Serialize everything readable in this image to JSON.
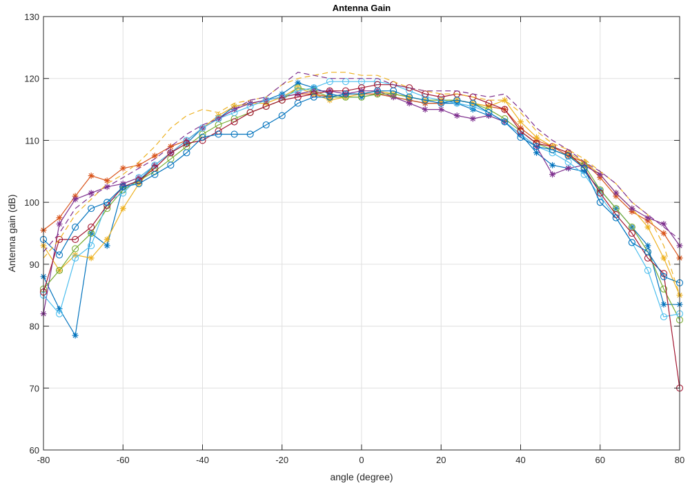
{
  "chart_data": {
    "type": "line",
    "title": "Antenna Gain",
    "xlabel": "angle (degree)",
    "ylabel": "Antenna gain (dB)",
    "xlim": [
      -80,
      80
    ],
    "ylim": [
      60,
      130
    ],
    "x_ticks": [
      -80,
      -60,
      -40,
      -20,
      0,
      20,
      40,
      60,
      80
    ],
    "y_ticks": [
      60,
      70,
      80,
      90,
      100,
      110,
      120,
      130
    ],
    "grid": true,
    "legend": "none",
    "x": [
      -80,
      -76,
      -72,
      -68,
      -64,
      -60,
      -56,
      -52,
      -48,
      -44,
      -40,
      -36,
      -32,
      -28,
      -24,
      -20,
      -16,
      -12,
      -8,
      -4,
      0,
      4,
      8,
      12,
      16,
      20,
      24,
      28,
      32,
      36,
      40,
      44,
      48,
      52,
      56,
      60,
      64,
      68,
      72,
      76,
      80
    ],
    "series": [
      {
        "name": "series-1",
        "color": "#0072BD",
        "marker": "*",
        "dash": false,
        "values": [
          88,
          82.8,
          78.5,
          95,
          93,
          102.5,
          103.5,
          106,
          108,
          109.5,
          112,
          113.5,
          115.5,
          116,
          116.5,
          117.5,
          119.3,
          118.5,
          117.5,
          117,
          117,
          117.5,
          117,
          116.5,
          116,
          116,
          116,
          115,
          114,
          113,
          111,
          108,
          106,
          105.5,
          105,
          102,
          99,
          96,
          93,
          83.5,
          83.5
        ]
      },
      {
        "name": "series-2",
        "color": "#D95319",
        "marker": "*",
        "dash": false,
        "values": [
          95.5,
          97.5,
          101,
          104.3,
          103.5,
          105.5,
          106,
          107.5,
          109,
          110,
          112,
          113.5,
          115,
          116,
          116.5,
          117,
          117.5,
          117.5,
          117,
          117.5,
          117.5,
          117.5,
          117,
          116.5,
          116,
          116,
          116.5,
          116,
          115.5,
          115,
          112,
          110,
          109,
          107.5,
          106.5,
          104,
          101,
          98.5,
          97,
          95,
          91
        ]
      },
      {
        "name": "series-3",
        "color": "#EDB120",
        "marker": "*",
        "dash": false,
        "values": [
          93,
          89,
          91.5,
          91,
          94,
          99,
          103,
          106,
          108,
          110,
          112,
          114,
          115.5,
          116,
          116,
          117,
          118.5,
          117.5,
          116.5,
          117,
          117.5,
          118,
          117.5,
          117,
          116.5,
          116.5,
          116.5,
          116,
          115.5,
          116.5,
          113,
          110.5,
          109,
          108,
          106.5,
          104.5,
          101.5,
          99,
          96,
          91,
          85
        ]
      },
      {
        "name": "series-4",
        "color": "#7E2F8E",
        "marker": "*",
        "dash": false,
        "values": [
          82,
          96.5,
          100.5,
          101.5,
          102.5,
          103,
          104,
          106,
          108,
          110,
          112,
          113.5,
          115,
          116,
          116.5,
          117,
          117.5,
          118,
          118,
          117.5,
          118,
          118,
          117,
          116,
          115,
          115,
          114,
          113.5,
          114,
          113,
          111,
          109,
          104.5,
          105.5,
          106,
          104.5,
          101.5,
          99,
          97.5,
          96.5,
          93
        ]
      },
      {
        "name": "series-5",
        "color": "#77AC30",
        "marker": "o",
        "dash": false,
        "values": [
          86,
          89,
          92.5,
          95,
          99,
          102,
          103.5,
          105,
          107,
          109,
          111,
          112.5,
          113.5,
          114.5,
          115.5,
          116.5,
          118.5,
          118,
          117,
          117,
          117,
          117.5,
          117.5,
          117,
          116.5,
          116.5,
          116.5,
          116,
          115,
          113.5,
          111.5,
          109.5,
          108.5,
          107.5,
          106,
          102,
          99,
          96,
          92,
          86,
          81
        ]
      },
      {
        "name": "series-6",
        "color": "#4DBEEE",
        "marker": "o",
        "dash": false,
        "values": [
          85,
          82,
          91,
          93,
          100,
          101.5,
          104,
          106,
          108,
          110,
          112,
          113.5,
          114.5,
          115.5,
          116.5,
          117,
          118,
          118.5,
          119.5,
          119.5,
          119.5,
          119.5,
          119,
          118,
          117,
          116.5,
          116,
          115.5,
          114.5,
          113,
          111,
          109,
          108,
          106.5,
          104.5,
          101,
          97.5,
          93.5,
          89,
          81.5,
          82
        ]
      },
      {
        "name": "series-7",
        "color": "#A2142F",
        "marker": "o",
        "dash": false,
        "values": [
          85.5,
          94,
          94,
          96,
          99.5,
          102.5,
          103.5,
          105.5,
          108,
          109.5,
          110,
          111.5,
          113,
          114.5,
          115.5,
          116.5,
          117,
          117.5,
          118,
          118,
          118.5,
          119,
          119,
          118.5,
          117.5,
          117,
          117.5,
          117,
          116,
          115,
          111.5,
          109.5,
          109,
          108,
          105.5,
          101.5,
          98,
          95,
          91,
          88.5,
          70
        ]
      },
      {
        "name": "series-8",
        "color": "#0072BD",
        "marker": "o",
        "dash": false,
        "values": [
          94,
          91.5,
          96,
          99,
          100,
          102.5,
          103,
          104.5,
          106,
          108,
          110.5,
          111,
          111,
          111,
          112.5,
          114,
          116,
          117,
          117,
          117.5,
          117.5,
          118,
          118,
          117,
          116.5,
          116,
          116.5,
          116,
          114.5,
          113,
          110.5,
          109,
          108.5,
          107.5,
          105.5,
          100,
          97.5,
          93.5,
          92,
          88,
          87
        ]
      },
      {
        "name": "series-9",
        "color": "#EDB120",
        "marker": "none",
        "dash": true,
        "values": [
          91,
          94,
          98,
          100.5,
          103,
          104.5,
          106.5,
          109,
          112,
          114,
          115,
          114.5,
          116,
          116.5,
          117,
          119,
          120,
          120.5,
          121,
          121,
          120.5,
          120.5,
          119.5,
          118.5,
          118,
          117.5,
          117.5,
          117,
          116.5,
          116.5,
          114.5,
          111.5,
          109.5,
          108.5,
          107,
          105,
          103,
          100,
          98,
          93,
          85
        ]
      },
      {
        "name": "series-10",
        "color": "#7E2F8E",
        "marker": "none",
        "dash": true,
        "values": [
          92,
          95,
          99,
          101,
          102.5,
          104,
          105.5,
          107,
          109,
          111,
          112.5,
          113.5,
          115,
          116.5,
          117,
          119,
          121,
          120.5,
          120,
          120,
          120,
          120,
          119,
          118.5,
          118,
          118,
          118,
          117.5,
          117,
          117.5,
          115,
          112,
          110,
          108.5,
          106.5,
          105,
          103,
          100,
          98,
          96,
          94
        ]
      }
    ]
  }
}
